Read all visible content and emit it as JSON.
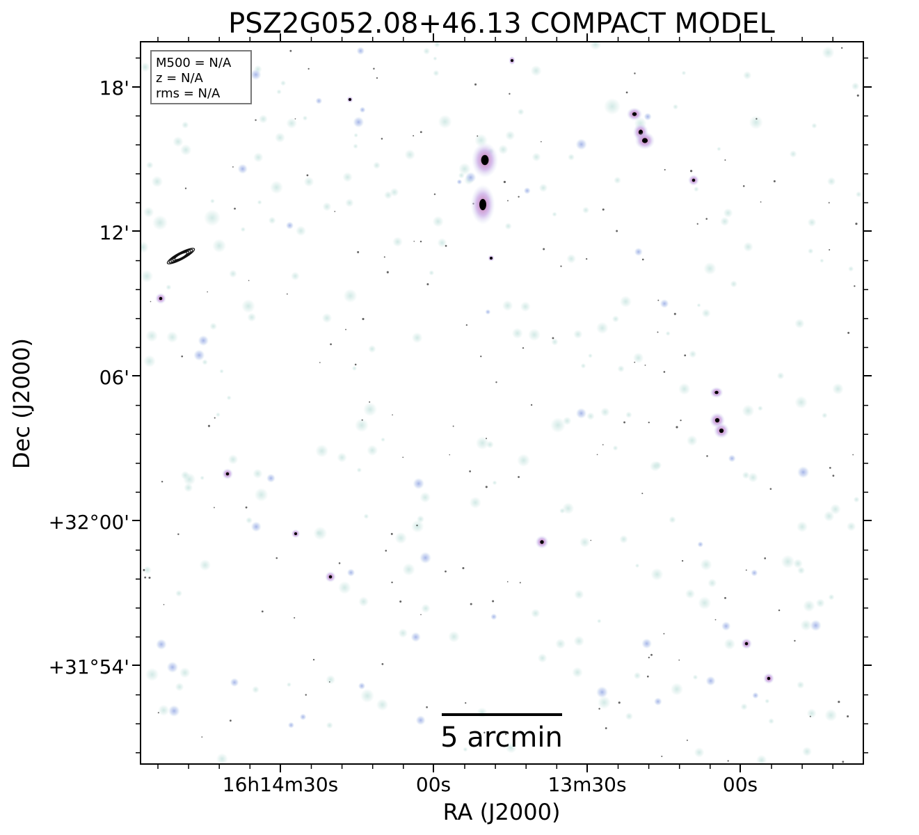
{
  "title": "PSZ2G052.08+46.13 COMPACT MODEL",
  "axes": {
    "xlabel": "RA (J2000)",
    "ylabel": "Dec (J2000)",
    "x_ticks": [
      "16h14m30s",
      "00s",
      "13m30s",
      "00s"
    ],
    "y_ticks": [
      "18'",
      "12'",
      "06'",
      "+32°00'",
      "+31°54'"
    ]
  },
  "info_box": {
    "lines": [
      "M500 = N/A",
      "z = N/A",
      "rms = N/A"
    ]
  },
  "scalebar": {
    "label": "5 arcmin"
  },
  "colors": {
    "background": "#ffffff",
    "faint_source": "#cfe8e4",
    "medium_source": "#b9c6ec",
    "bright_source_core": "#000000",
    "bright_source_halo": "#d38fc7",
    "frame": "#000000"
  }
}
